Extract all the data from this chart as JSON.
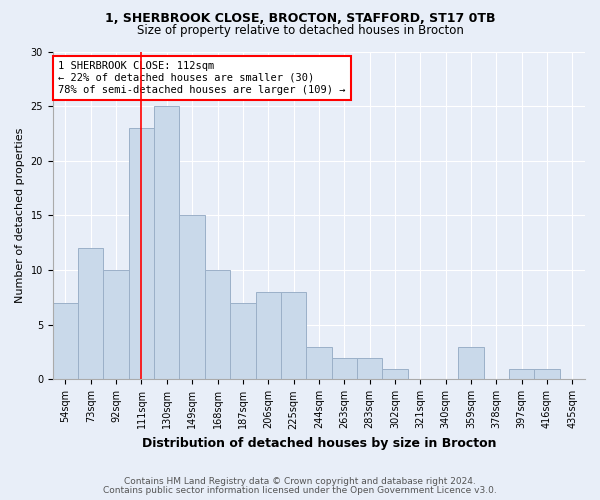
{
  "title1": "1, SHERBROOK CLOSE, BROCTON, STAFFORD, ST17 0TB",
  "title2": "Size of property relative to detached houses in Brocton",
  "xlabel": "Distribution of detached houses by size in Brocton",
  "ylabel": "Number of detached properties",
  "footnote1": "Contains HM Land Registry data © Crown copyright and database right 2024.",
  "footnote2": "Contains public sector information licensed under the Open Government Licence v3.0.",
  "bin_labels": [
    "54sqm",
    "73sqm",
    "92sqm",
    "111sqm",
    "130sqm",
    "149sqm",
    "168sqm",
    "187sqm",
    "206sqm",
    "225sqm",
    "244sqm",
    "263sqm",
    "283sqm",
    "302sqm",
    "321sqm",
    "340sqm",
    "359sqm",
    "378sqm",
    "397sqm",
    "416sqm",
    "435sqm"
  ],
  "bar_values": [
    7,
    12,
    10,
    23,
    25,
    15,
    10,
    7,
    8,
    8,
    3,
    2,
    2,
    1,
    0,
    0,
    3,
    0,
    1,
    1,
    0
  ],
  "bar_color": "#c9d9ea",
  "bar_edge_color": "#9bb0c8",
  "annotation_line1": "1 SHERBROOK CLOSE: 112sqm",
  "annotation_line2": "← 22% of detached houses are smaller (30)",
  "annotation_line3": "78% of semi-detached houses are larger (109) →",
  "annotation_box_color": "white",
  "annotation_box_edge_color": "red",
  "vline_color": "red",
  "vline_x_index": 3,
  "ylim": [
    0,
    30
  ],
  "yticks": [
    0,
    5,
    10,
    15,
    20,
    25,
    30
  ],
  "background_color": "#e8eef8",
  "plot_bg_color": "#e8eef8",
  "title1_fontsize": 9,
  "title2_fontsize": 8.5,
  "xlabel_fontsize": 9,
  "ylabel_fontsize": 8,
  "tick_fontsize": 7,
  "footnote_fontsize": 6.5,
  "footnote_color": "#555555"
}
